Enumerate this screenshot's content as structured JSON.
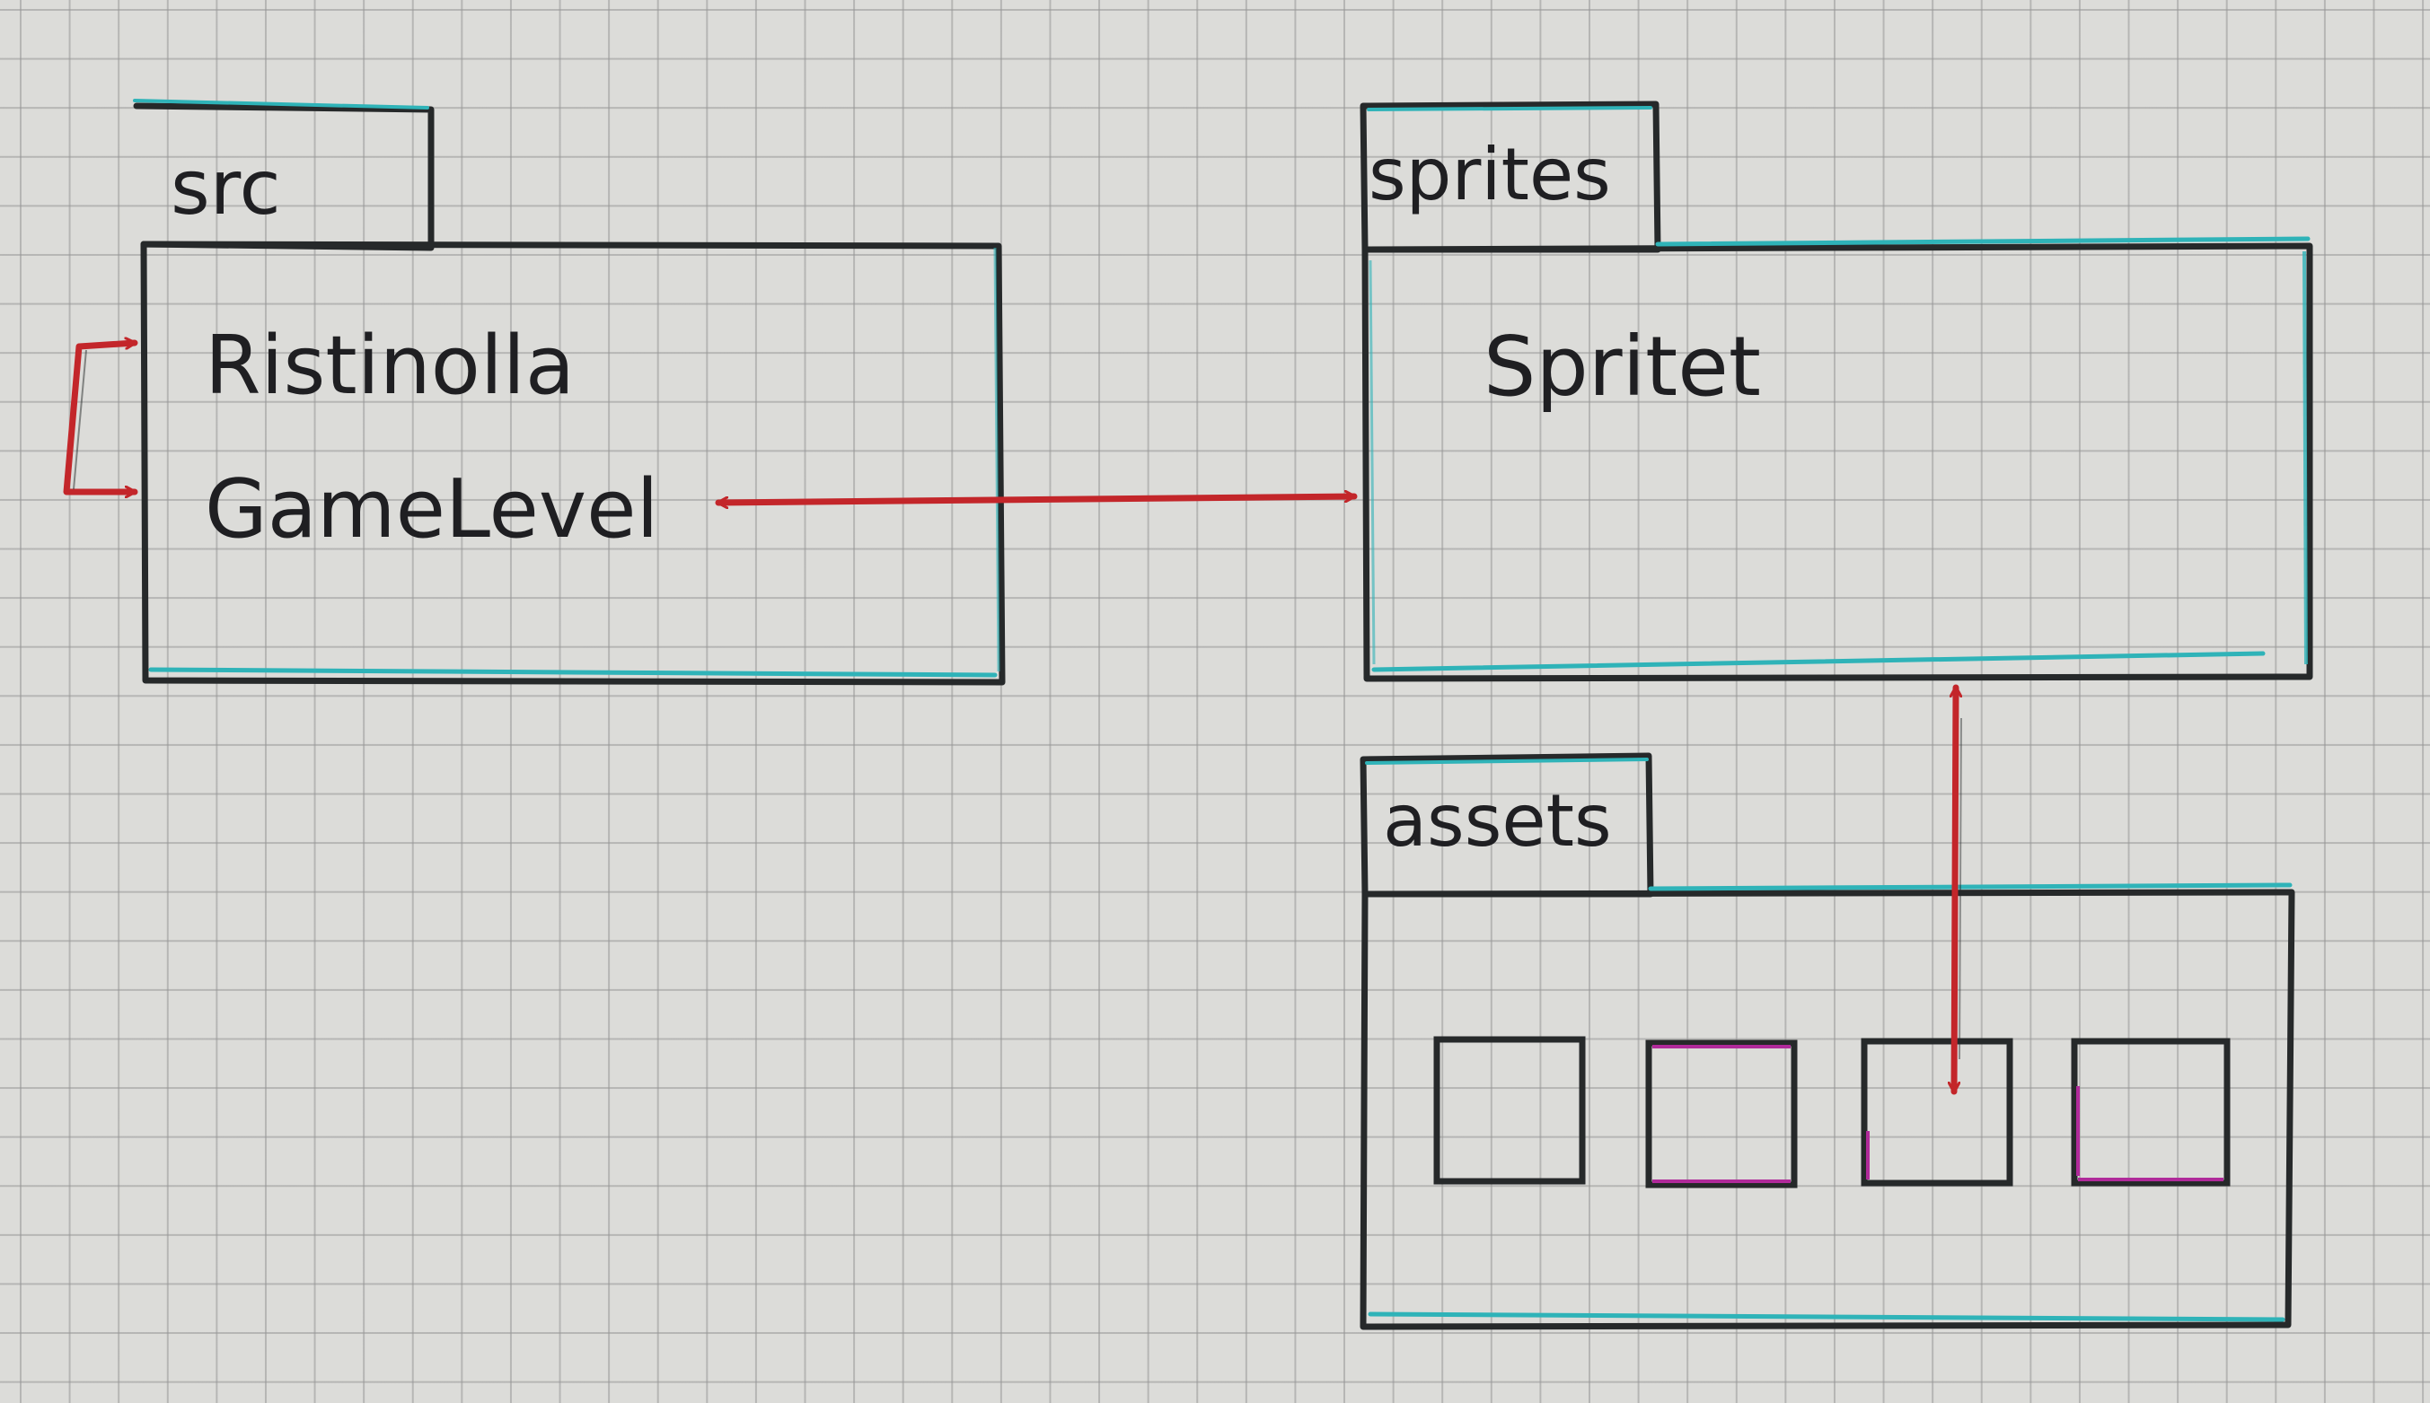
{
  "colors": {
    "outline": "#26292a",
    "accent_cyan": "#2fb3b8",
    "arrow_red": "#c3262a",
    "asset_pink": "#b02a9a",
    "paper": "#dcdcd9",
    "grid": "#9a9a9a"
  },
  "packages": {
    "src": {
      "tab_label": "src",
      "items": [
        "Ristinolla",
        "GameLevel"
      ]
    },
    "sprites": {
      "tab_label": "sprites",
      "items": [
        "Spritet"
      ]
    },
    "assets": {
      "tab_label": "assets",
      "asset_count": 4
    }
  },
  "connections": [
    {
      "from": "Ristinolla",
      "to": "GameLevel",
      "style": "bracket-arrow"
    },
    {
      "from": "GameLevel",
      "to": "sprites",
      "style": "double-arrow"
    },
    {
      "from": "sprites",
      "to": "assets",
      "style": "double-arrow"
    }
  ]
}
